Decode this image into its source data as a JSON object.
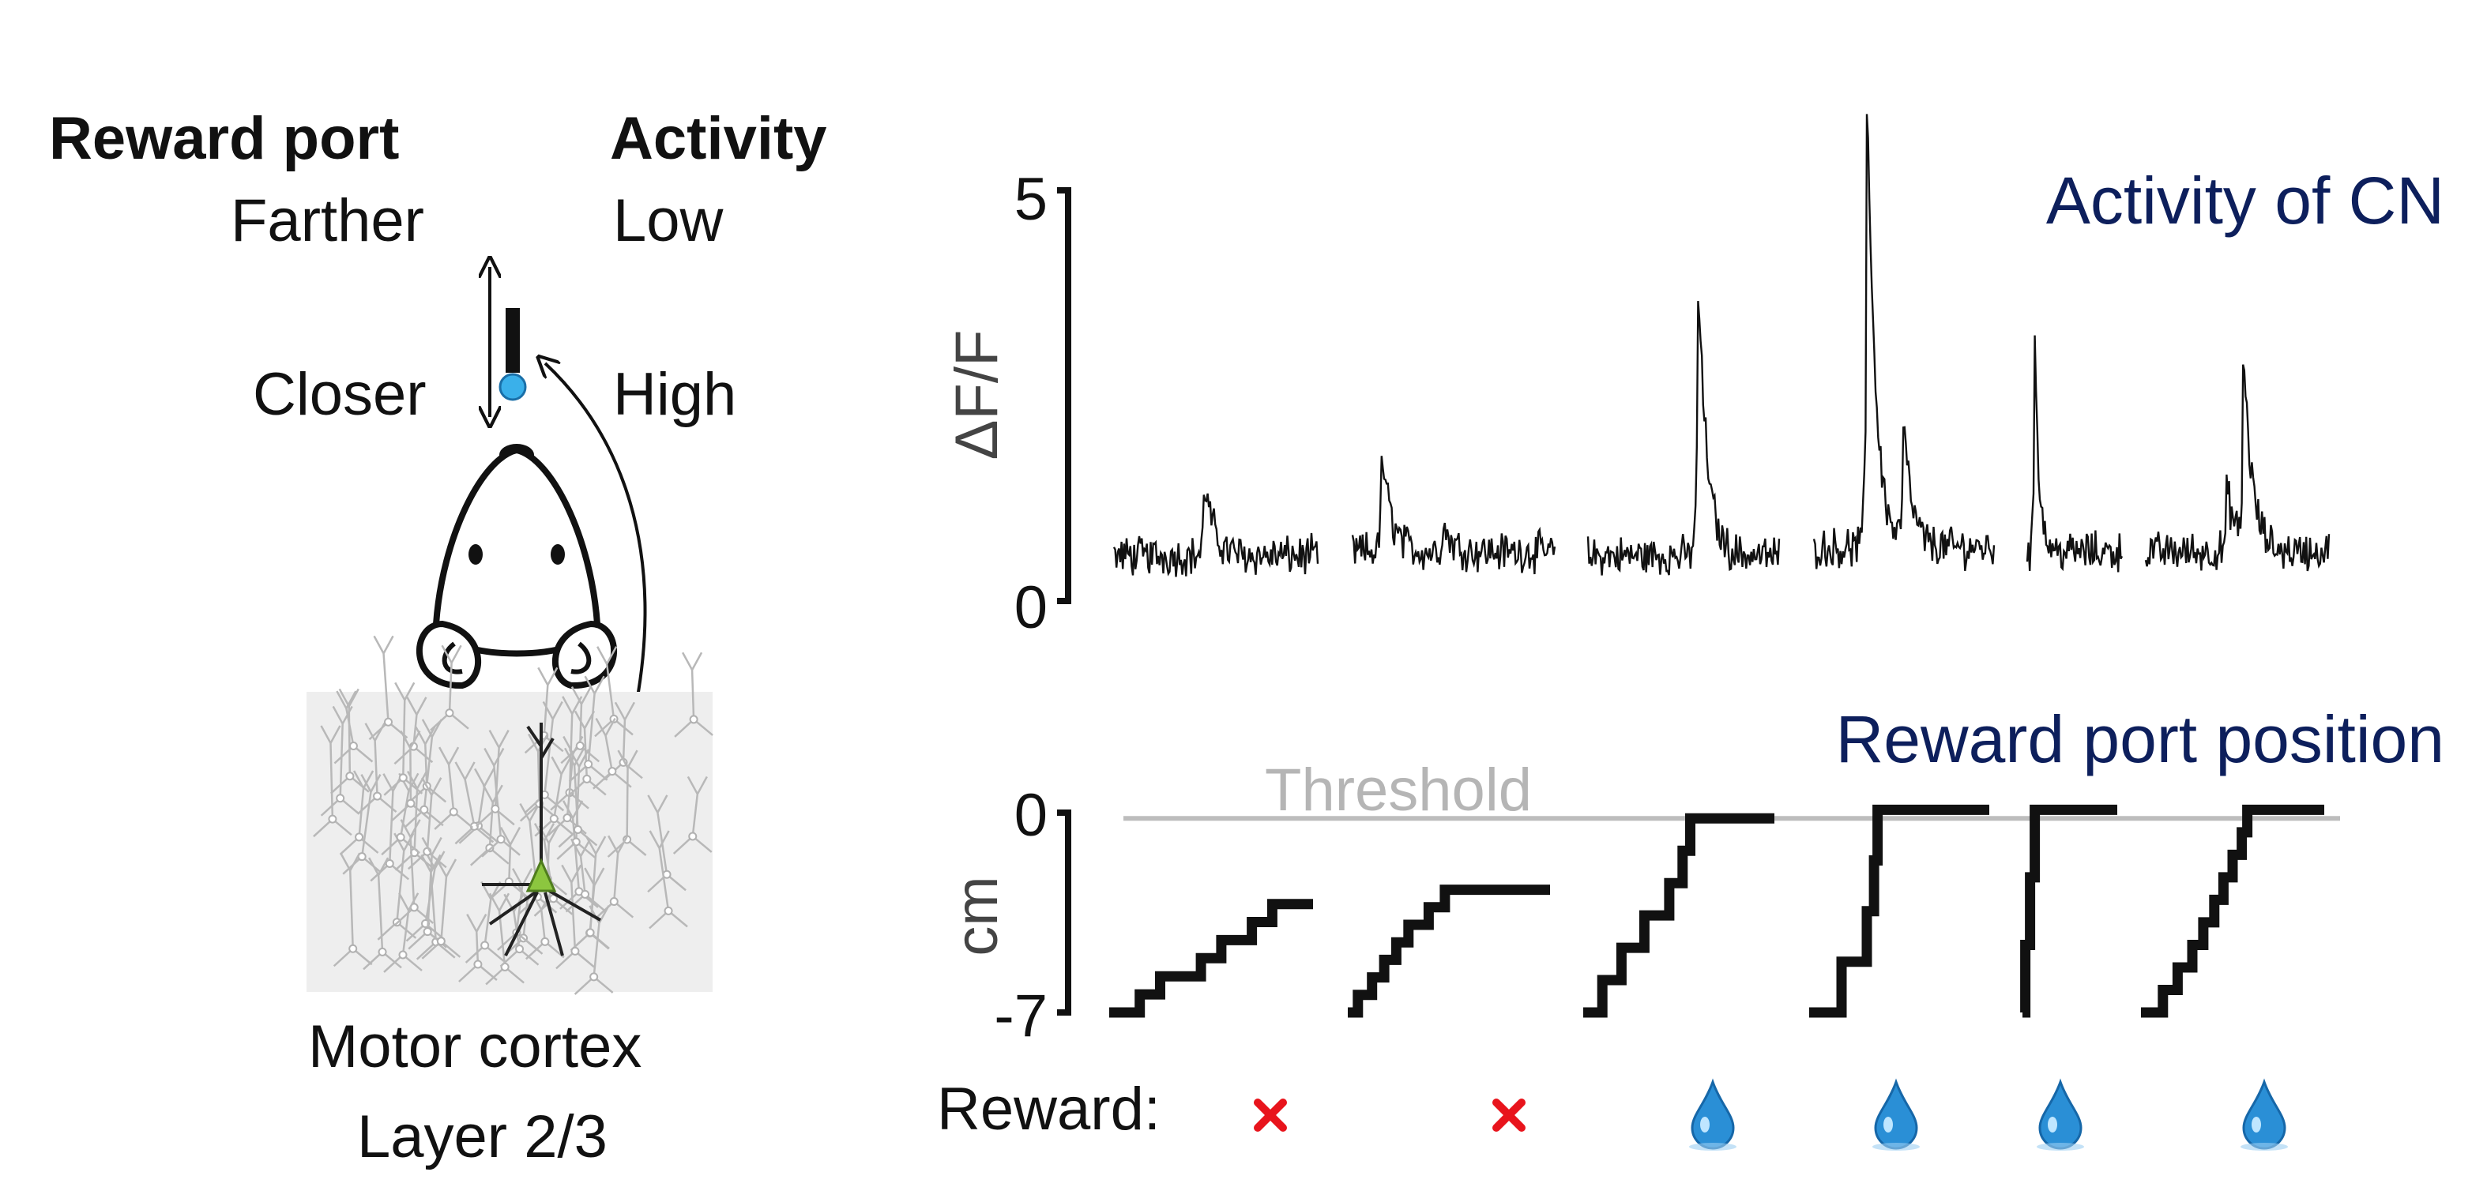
{
  "legend": {
    "reward_port_header": "Reward port",
    "activity_header": "Activity",
    "farther": "Farther",
    "low": "Low",
    "closer": "Closer",
    "high": "High"
  },
  "cortex": {
    "line1": "Motor cortex",
    "line2": "Layer 2/3"
  },
  "colors": {
    "navy": "#0d1f5c",
    "trace": "#111111",
    "threshold": "#bdbdbd",
    "cross": "#e8141c",
    "drop": "#2a8fd6",
    "neuron": "#8cc63f",
    "tissue": "#eeeeee"
  },
  "chart_data": [
    {
      "type": "line",
      "title": "Activity of CN",
      "ylabel": "ΔF/F",
      "ylim": [
        0,
        5
      ],
      "yticks": [
        "0",
        "5"
      ],
      "trials": [
        {
          "baseline": 0.55,
          "peaks": [
            {
              "t": 0.45,
              "amp": 0.8
            }
          ]
        },
        {
          "baseline": 0.6,
          "peaks": [
            {
              "t": 0.15,
              "amp": 1.1
            },
            {
              "t": 0.45,
              "amp": 0.3
            }
          ]
        },
        {
          "baseline": 0.55,
          "peaks": [
            {
              "t": 0.58,
              "amp": 3.2
            }
          ]
        },
        {
          "baseline": 0.65,
          "peaks": [
            {
              "t": 0.3,
              "amp": 5.2
            },
            {
              "t": 0.5,
              "amp": 1.4
            }
          ]
        },
        {
          "baseline": 0.6,
          "peaks": [
            {
              "t": 0.08,
              "amp": 2.7
            }
          ]
        },
        {
          "baseline": 0.6,
          "peaks": [
            {
              "t": 0.45,
              "amp": 0.7
            },
            {
              "t": 0.54,
              "amp": 2.1
            }
          ]
        }
      ]
    },
    {
      "type": "line",
      "title": "Reward port position",
      "ylabel": "cm",
      "ylim": [
        -7,
        0
      ],
      "yticks": [
        "-7",
        "0"
      ],
      "threshold": {
        "label": "Threshold",
        "value": -0.2
      },
      "trials": [
        {
          "final": -3.2,
          "steps": [
            0.15,
            0.25,
            0.45,
            0.55,
            0.7,
            0.8
          ]
        },
        {
          "final": -2.7,
          "steps": [
            0.05,
            0.12,
            0.18,
            0.24,
            0.3,
            0.4,
            0.48
          ]
        },
        {
          "final": -0.2,
          "steps": [
            0.1,
            0.2,
            0.32,
            0.45,
            0.52,
            0.56
          ]
        },
        {
          "final": 0.1,
          "steps": [
            0.18,
            0.32,
            0.36,
            0.38
          ]
        },
        {
          "final": 0.1,
          "steps": [
            0.03,
            0.08,
            0.13
          ]
        },
        {
          "final": 0.1,
          "steps": [
            0.12,
            0.2,
            0.28,
            0.34,
            0.4,
            0.45,
            0.5,
            0.55,
            0.58
          ]
        }
      ],
      "reward_label": "Reward:",
      "rewards": [
        "cross",
        "cross",
        "drop",
        "drop",
        "drop",
        "drop"
      ]
    }
  ]
}
